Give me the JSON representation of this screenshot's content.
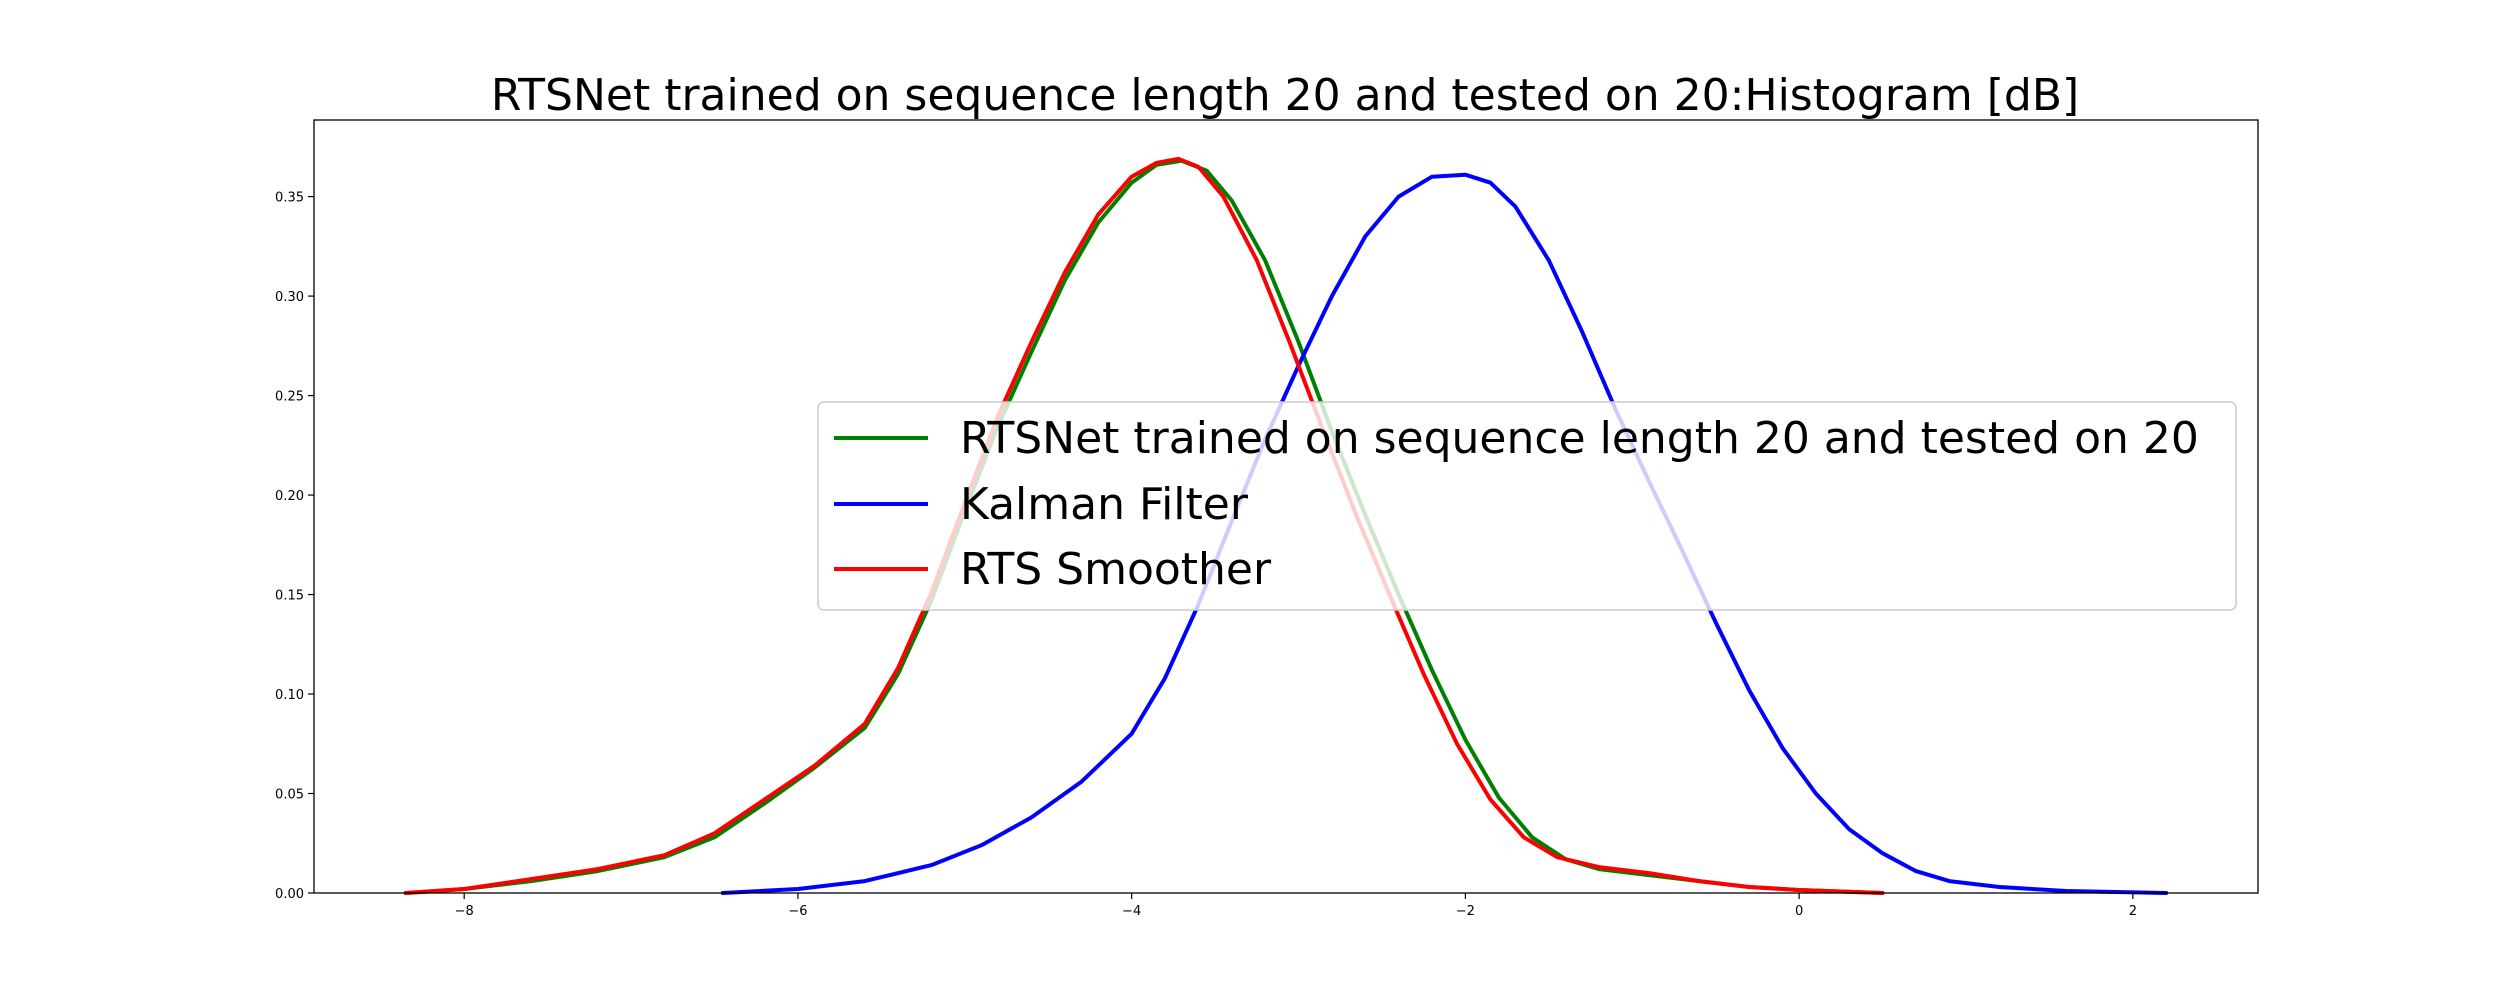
{
  "chart_data": {
    "type": "line",
    "title": "RTSNet trained on sequence length 20 and tested on 20:Histogram [dB]",
    "xlabel": "",
    "ylabel": "",
    "xlim": [
      -8.9,
      2.75
    ],
    "ylim": [
      0,
      0.3885
    ],
    "xticks": [
      -8,
      -6,
      -4,
      -2,
      0,
      2
    ],
    "xtick_labels": [
      "−8",
      "−6",
      "−4",
      "−2",
      "0",
      "2"
    ],
    "yticks": [
      0.0,
      0.05,
      0.1,
      0.15,
      0.2,
      0.25,
      0.3,
      0.35
    ],
    "ytick_labels": [
      "0.00",
      "0.05",
      "0.10",
      "0.15",
      "0.20",
      "0.25",
      "0.30",
      "0.35"
    ],
    "grid": false,
    "legend_position": "center-right",
    "series": [
      {
        "name": "RTSNet trained on sequence length 20 and tested on 20",
        "color": "#008000",
        "points": [
          [
            -8.35,
            0.0
          ],
          [
            -8.0,
            0.002
          ],
          [
            -7.6,
            0.006
          ],
          [
            -7.2,
            0.011
          ],
          [
            -6.8,
            0.018
          ],
          [
            -6.5,
            0.028
          ],
          [
            -6.2,
            0.045
          ],
          [
            -5.9,
            0.063
          ],
          [
            -5.6,
            0.083
          ],
          [
            -5.4,
            0.11
          ],
          [
            -5.2,
            0.147
          ],
          [
            -5.0,
            0.192
          ],
          [
            -4.8,
            0.235
          ],
          [
            -4.6,
            0.272
          ],
          [
            -4.4,
            0.308
          ],
          [
            -4.2,
            0.337
          ],
          [
            -4.0,
            0.357
          ],
          [
            -3.85,
            0.366
          ],
          [
            -3.7,
            0.368
          ],
          [
            -3.55,
            0.363
          ],
          [
            -3.4,
            0.348
          ],
          [
            -3.2,
            0.318
          ],
          [
            -3.0,
            0.277
          ],
          [
            -2.8,
            0.232
          ],
          [
            -2.6,
            0.19
          ],
          [
            -2.4,
            0.15
          ],
          [
            -2.2,
            0.112
          ],
          [
            -2.0,
            0.077
          ],
          [
            -1.8,
            0.048
          ],
          [
            -1.6,
            0.028
          ],
          [
            -1.4,
            0.017
          ],
          [
            -1.2,
            0.012
          ],
          [
            -0.9,
            0.009
          ],
          [
            -0.6,
            0.006
          ],
          [
            -0.3,
            0.003
          ],
          [
            0.0,
            0.0015
          ],
          [
            0.5,
            0.0
          ]
        ]
      },
      {
        "name": "Kalman Filter",
        "color": "#0000ff",
        "points": [
          [
            -6.45,
            0.0
          ],
          [
            -6.0,
            0.002
          ],
          [
            -5.6,
            0.006
          ],
          [
            -5.2,
            0.014
          ],
          [
            -4.9,
            0.024
          ],
          [
            -4.6,
            0.038
          ],
          [
            -4.3,
            0.056
          ],
          [
            -4.0,
            0.08
          ],
          [
            -3.8,
            0.108
          ],
          [
            -3.6,
            0.145
          ],
          [
            -3.4,
            0.187
          ],
          [
            -3.2,
            0.228
          ],
          [
            -3.0,
            0.265
          ],
          [
            -2.8,
            0.3
          ],
          [
            -2.6,
            0.33
          ],
          [
            -2.4,
            0.35
          ],
          [
            -2.2,
            0.36
          ],
          [
            -2.0,
            0.361
          ],
          [
            -1.85,
            0.357
          ],
          [
            -1.7,
            0.345
          ],
          [
            -1.5,
            0.318
          ],
          [
            -1.3,
            0.282
          ],
          [
            -1.1,
            0.243
          ],
          [
            -0.9,
            0.207
          ],
          [
            -0.7,
            0.172
          ],
          [
            -0.5,
            0.136
          ],
          [
            -0.3,
            0.102
          ],
          [
            -0.1,
            0.073
          ],
          [
            0.1,
            0.05
          ],
          [
            0.3,
            0.032
          ],
          [
            0.5,
            0.02
          ],
          [
            0.7,
            0.011
          ],
          [
            0.9,
            0.006
          ],
          [
            1.2,
            0.003
          ],
          [
            1.6,
            0.001
          ],
          [
            2.2,
            0.0
          ]
        ]
      },
      {
        "name": "RTS Smoother",
        "color": "#ff0000",
        "points": [
          [
            -8.35,
            0.0
          ],
          [
            -8.0,
            0.002
          ],
          [
            -7.6,
            0.007
          ],
          [
            -7.2,
            0.012
          ],
          [
            -6.8,
            0.019
          ],
          [
            -6.5,
            0.03
          ],
          [
            -6.2,
            0.047
          ],
          [
            -5.9,
            0.064
          ],
          [
            -5.6,
            0.085
          ],
          [
            -5.4,
            0.113
          ],
          [
            -5.2,
            0.151
          ],
          [
            -5.0,
            0.196
          ],
          [
            -4.8,
            0.24
          ],
          [
            -4.6,
            0.277
          ],
          [
            -4.4,
            0.312
          ],
          [
            -4.2,
            0.341
          ],
          [
            -4.0,
            0.36
          ],
          [
            -3.85,
            0.367
          ],
          [
            -3.72,
            0.369
          ],
          [
            -3.6,
            0.365
          ],
          [
            -3.45,
            0.35
          ],
          [
            -3.25,
            0.318
          ],
          [
            -3.05,
            0.276
          ],
          [
            -2.85,
            0.232
          ],
          [
            -2.65,
            0.189
          ],
          [
            -2.45,
            0.149
          ],
          [
            -2.25,
            0.11
          ],
          [
            -2.05,
            0.075
          ],
          [
            -1.85,
            0.047
          ],
          [
            -1.65,
            0.028
          ],
          [
            -1.45,
            0.018
          ],
          [
            -1.2,
            0.013
          ],
          [
            -0.9,
            0.01
          ],
          [
            -0.6,
            0.006
          ],
          [
            -0.3,
            0.003
          ],
          [
            0.0,
            0.0015
          ],
          [
            0.5,
            0.0
          ]
        ]
      }
    ]
  }
}
